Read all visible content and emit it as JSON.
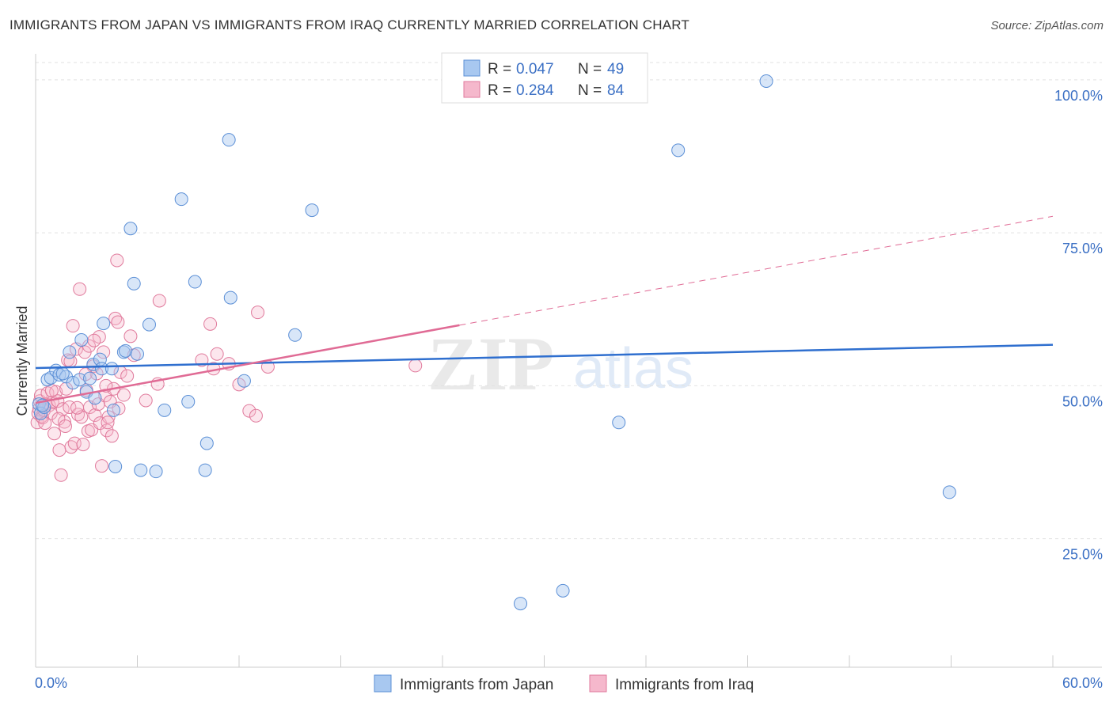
{
  "title": "IMMIGRANTS FROM JAPAN VS IMMIGRANTS FROM IRAQ CURRENTLY MARRIED CORRELATION CHART",
  "source": "Source: ZipAtlas.com",
  "watermark": {
    "zip": "ZIP",
    "atlas": "atlas"
  },
  "colors": {
    "japan_fill": "#a8c8f0",
    "japan_stroke": "#5b8fd6",
    "japan_line": "#2f6fcf",
    "iraq_fill": "#f5b8cc",
    "iraq_stroke": "#e07a9c",
    "iraq_line": "#e06b95",
    "axis_label": "#3a6fc4",
    "grid": "#e2e2e2"
  },
  "legend": {
    "r_label": "R =",
    "n_label": "N =",
    "japan": {
      "r": "0.047",
      "n": "49"
    },
    "iraq": {
      "r": "0.284",
      "n": "84"
    }
  },
  "chart_data": {
    "type": "scatter",
    "title": "IMMIGRANTS FROM JAPAN VS IMMIGRANTS FROM IRAQ CURRENTLY MARRIED CORRELATION CHART",
    "xlabel": "",
    "ylabel": "Currently Married",
    "xlim": [
      0,
      60
    ],
    "ylim": [
      4,
      104
    ],
    "x_tick_labels": [
      "0.0%",
      "60.0%"
    ],
    "y_ticks": [
      25,
      50,
      75,
      100
    ],
    "y_tick_labels": [
      "25.0%",
      "50.0%",
      "75.0%",
      "100.0%"
    ],
    "series": [
      {
        "name": "Immigrants from Japan",
        "color_key": "japan",
        "points": [
          [
            0.2,
            47.0
          ],
          [
            0.3,
            45.5
          ],
          [
            0.5,
            46.5
          ],
          [
            0.7,
            51.0
          ],
          [
            0.9,
            51.3
          ],
          [
            1.2,
            52.5
          ],
          [
            1.4,
            51.8
          ],
          [
            1.8,
            51.5
          ],
          [
            2.0,
            55.5
          ],
          [
            2.2,
            50.5
          ],
          [
            2.6,
            51.0
          ],
          [
            2.7,
            57.5
          ],
          [
            3.0,
            49.0
          ],
          [
            3.4,
            53.5
          ],
          [
            3.5,
            48.0
          ],
          [
            3.8,
            54.3
          ],
          [
            3.9,
            52.8
          ],
          [
            4.0,
            60.2
          ],
          [
            4.5,
            52.8
          ],
          [
            4.6,
            46.0
          ],
          [
            4.7,
            36.8
          ],
          [
            5.2,
            55.5
          ],
          [
            5.3,
            55.7
          ],
          [
            5.6,
            75.7
          ],
          [
            5.8,
            66.7
          ],
          [
            6.0,
            55.2
          ],
          [
            6.2,
            36.2
          ],
          [
            6.7,
            60.0
          ],
          [
            7.1,
            36.0
          ],
          [
            7.6,
            46.0
          ],
          [
            8.6,
            80.5
          ],
          [
            9.0,
            47.4
          ],
          [
            9.4,
            67.0
          ],
          [
            10.0,
            36.2
          ],
          [
            10.1,
            40.6
          ],
          [
            11.4,
            90.2
          ],
          [
            11.5,
            64.4
          ],
          [
            12.3,
            50.8
          ],
          [
            15.3,
            58.3
          ],
          [
            16.3,
            78.7
          ],
          [
            28.6,
            14.4
          ],
          [
            31.1,
            16.5
          ],
          [
            34.4,
            44.0
          ],
          [
            37.9,
            88.5
          ],
          [
            43.1,
            99.8
          ],
          [
            53.9,
            32.6
          ],
          [
            0.4,
            46.8
          ],
          [
            1.6,
            52.0
          ],
          [
            3.2,
            51.2
          ]
        ]
      },
      {
        "name": "Immigrants from Iraq",
        "color_key": "iraq",
        "points": [
          [
            0.1,
            44.0
          ],
          [
            0.15,
            45.5
          ],
          [
            0.2,
            46.2
          ],
          [
            0.25,
            47.5
          ],
          [
            0.3,
            48.4
          ],
          [
            0.35,
            45.0
          ],
          [
            0.4,
            44.8
          ],
          [
            0.5,
            46.0
          ],
          [
            0.6,
            47.0
          ],
          [
            0.7,
            48.8
          ],
          [
            0.8,
            46.8
          ],
          [
            0.9,
            45.5
          ],
          [
            1.0,
            47.3
          ],
          [
            1.1,
            42.2
          ],
          [
            1.2,
            49.0
          ],
          [
            1.3,
            47.5
          ],
          [
            1.4,
            39.5
          ],
          [
            1.5,
            35.4
          ],
          [
            1.6,
            46.2
          ],
          [
            1.7,
            44.1
          ],
          [
            1.8,
            49.5
          ],
          [
            1.9,
            54.2
          ],
          [
            2.0,
            46.5
          ],
          [
            2.1,
            40.0
          ],
          [
            2.2,
            59.8
          ],
          [
            2.3,
            40.6
          ],
          [
            2.4,
            56.0
          ],
          [
            2.5,
            45.3
          ],
          [
            2.6,
            65.8
          ],
          [
            2.7,
            44.9
          ],
          [
            2.8,
            40.4
          ],
          [
            2.9,
            55.5
          ],
          [
            3.0,
            49.3
          ],
          [
            3.1,
            42.6
          ],
          [
            3.2,
            46.5
          ],
          [
            3.3,
            42.8
          ],
          [
            3.4,
            53.2
          ],
          [
            3.5,
            45.2
          ],
          [
            3.6,
            52.0
          ],
          [
            3.7,
            47.0
          ],
          [
            3.8,
            43.9
          ],
          [
            3.9,
            36.9
          ],
          [
            4.0,
            55.5
          ],
          [
            4.1,
            48.4
          ],
          [
            4.2,
            42.7
          ],
          [
            4.3,
            44.9
          ],
          [
            4.4,
            47.4
          ],
          [
            4.5,
            41.8
          ],
          [
            4.6,
            49.5
          ],
          [
            4.7,
            61.0
          ],
          [
            4.8,
            70.5
          ],
          [
            4.9,
            46.3
          ],
          [
            5.0,
            52.2
          ],
          [
            5.2,
            48.5
          ],
          [
            5.4,
            51.6
          ],
          [
            5.6,
            58.1
          ],
          [
            5.8,
            55.0
          ],
          [
            2.05,
            54.0
          ],
          [
            3.15,
            56.5
          ],
          [
            3.75,
            58.0
          ],
          [
            4.15,
            50.0
          ],
          [
            1.35,
            44.6
          ],
          [
            0.55,
            43.9
          ],
          [
            0.95,
            49.2
          ],
          [
            1.75,
            43.4
          ],
          [
            2.45,
            46.4
          ],
          [
            2.95,
            51.9
          ],
          [
            3.45,
            57.4
          ],
          [
            4.25,
            44.0
          ],
          [
            4.85,
            60.4
          ],
          [
            6.5,
            47.6
          ],
          [
            7.2,
            50.3
          ],
          [
            7.3,
            63.9
          ],
          [
            9.8,
            54.2
          ],
          [
            10.3,
            60.1
          ],
          [
            10.5,
            52.8
          ],
          [
            10.7,
            55.2
          ],
          [
            11.4,
            53.6
          ],
          [
            12.0,
            50.2
          ],
          [
            12.6,
            45.9
          ],
          [
            13.0,
            45.1
          ],
          [
            13.1,
            62.0
          ],
          [
            13.7,
            53.1
          ],
          [
            22.4,
            53.3
          ]
        ]
      }
    ],
    "trend_lines": [
      {
        "series": "Immigrants from Japan",
        "x": [
          0,
          60
        ],
        "y": [
          52.9,
          56.7
        ],
        "style": "solid"
      },
      {
        "series": "Immigrants from Iraq",
        "x": [
          0,
          25
        ],
        "y": [
          47.2,
          59.9
        ],
        "style": "solid"
      },
      {
        "series": "Immigrants from Iraq",
        "x": [
          25,
          60
        ],
        "y": [
          59.9,
          77.7
        ],
        "style": "dashed"
      }
    ]
  },
  "bottom_legend": {
    "japan_label": "Immigrants from Japan",
    "iraq_label": "Immigrants from Iraq"
  }
}
